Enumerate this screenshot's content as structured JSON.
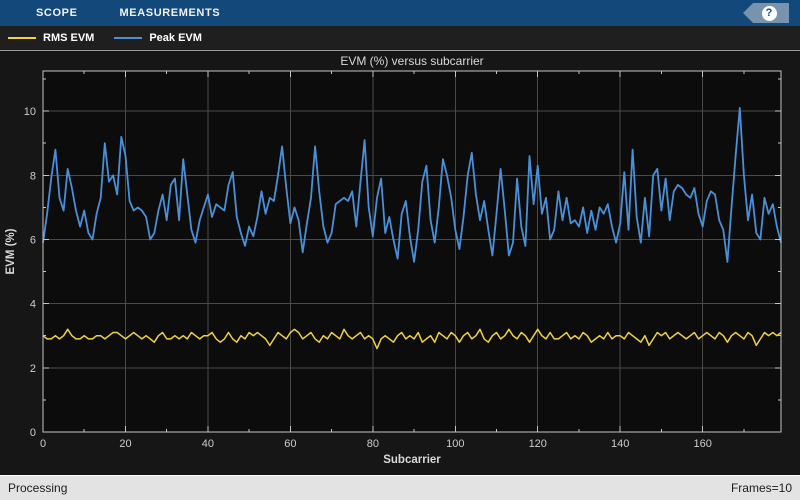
{
  "toolbar": {
    "tabs": [
      {
        "label": "SCOPE"
      },
      {
        "label": "MEASUREMENTS"
      }
    ],
    "help_label": "?",
    "bg_color": "#12497a"
  },
  "legend": {
    "items": [
      {
        "label": "RMS EVM",
        "color": "#eed23f"
      },
      {
        "label": "Peak EVM",
        "color": "#4a90d9"
      }
    ]
  },
  "statusbar": {
    "left": "Processing",
    "right": "Frames=10"
  },
  "chart_data": {
    "type": "line",
    "title": "EVM (%) versus subcarrier",
    "xlabel": "Subcarrier",
    "ylabel": "EVM (%)",
    "xlim": [
      0,
      179
    ],
    "ylim": [
      0,
      11.25
    ],
    "xticks_major": [
      0,
      20,
      40,
      60,
      80,
      100,
      120,
      140,
      160
    ],
    "xticks_minor": [
      10,
      30,
      50,
      70,
      90,
      110,
      130,
      150,
      170
    ],
    "yticks_major": [
      0,
      2,
      4,
      6,
      8,
      10
    ],
    "yticks_minor": [
      1,
      3,
      5,
      7,
      9,
      11
    ],
    "grid": true,
    "legend_position": "top-strip",
    "colors": {
      "plot_bg": "#0c0c0c",
      "figure_bg": "#161616",
      "grid": "#4a4a4a",
      "axis": "#c4c4c4",
      "tick_text": "#cccccc",
      "title_text": "#d9d9d9"
    },
    "x_step": 1,
    "series": [
      {
        "name": "RMS EVM",
        "color": "#eed23f",
        "width": 1.5,
        "values": [
          3.0,
          2.9,
          2.9,
          3.0,
          2.9,
          3.0,
          3.2,
          3.0,
          2.9,
          2.9,
          3.0,
          2.9,
          2.9,
          3.0,
          3.0,
          2.9,
          3.0,
          3.1,
          3.1,
          3.0,
          2.9,
          3.0,
          3.1,
          3.0,
          2.9,
          3.0,
          2.9,
          2.8,
          3.0,
          3.1,
          2.9,
          2.9,
          3.0,
          2.9,
          3.0,
          2.9,
          3.1,
          3.0,
          2.9,
          3.0,
          3.0,
          3.1,
          2.9,
          2.8,
          2.9,
          3.1,
          2.9,
          2.8,
          3.0,
          2.9,
          3.1,
          3.0,
          3.1,
          3.0,
          2.9,
          2.7,
          2.9,
          3.1,
          3.0,
          2.9,
          3.1,
          3.2,
          3.1,
          2.9,
          3.0,
          3.1,
          2.9,
          2.8,
          3.0,
          2.9,
          3.1,
          3.0,
          2.9,
          3.2,
          3.0,
          2.9,
          3.0,
          3.1,
          2.9,
          3.0,
          2.9,
          2.6,
          2.9,
          3.0,
          2.9,
          2.8,
          3.0,
          3.1,
          2.9,
          3.0,
          2.9,
          3.1,
          2.8,
          2.9,
          3.0,
          2.8,
          3.1,
          3.0,
          2.9,
          3.1,
          3.0,
          2.8,
          3.0,
          3.1,
          2.9,
          3.0,
          3.2,
          2.9,
          2.8,
          3.0,
          3.1,
          2.9,
          3.0,
          3.2,
          3.0,
          2.9,
          3.1,
          3.0,
          2.8,
          3.0,
          3.2,
          3.0,
          2.9,
          3.1,
          2.9,
          2.9,
          3.0,
          3.1,
          2.9,
          3.0,
          2.9,
          3.1,
          3.0,
          2.8,
          2.9,
          3.0,
          2.9,
          3.1,
          2.9,
          3.0,
          3.0,
          2.9,
          3.1,
          3.0,
          2.9,
          2.8,
          3.0,
          2.7,
          2.9,
          3.1,
          3.0,
          3.1,
          2.9,
          3.0,
          3.1,
          3.0,
          2.9,
          3.0,
          3.1,
          2.9,
          3.0,
          3.1,
          3.0,
          2.9,
          3.1,
          3.0,
          2.8,
          3.0,
          3.1,
          3.0,
          2.9,
          3.1,
          3.0,
          2.7,
          2.9,
          3.1,
          3.0,
          3.1,
          3.0,
          3.1
        ]
      },
      {
        "name": "Peak EVM",
        "color": "#4a90d9",
        "width": 1.8,
        "values": [
          5.9,
          6.8,
          7.9,
          8.8,
          7.3,
          6.9,
          8.2,
          7.6,
          6.9,
          6.4,
          6.9,
          6.2,
          6.0,
          6.8,
          7.3,
          9.0,
          7.8,
          8.0,
          7.4,
          9.2,
          8.6,
          7.2,
          6.9,
          7.0,
          6.9,
          6.7,
          6.0,
          6.2,
          6.9,
          7.4,
          6.6,
          7.7,
          7.9,
          6.6,
          8.5,
          7.4,
          6.3,
          5.9,
          6.6,
          7.0,
          7.4,
          6.7,
          7.1,
          7.0,
          6.9,
          7.7,
          8.1,
          6.7,
          6.2,
          5.8,
          6.4,
          6.1,
          6.7,
          7.5,
          6.8,
          7.3,
          7.2,
          8.0,
          8.9,
          7.6,
          6.5,
          7.0,
          6.6,
          5.6,
          6.5,
          7.3,
          8.9,
          7.5,
          6.4,
          5.9,
          6.2,
          7.1,
          7.2,
          7.3,
          7.2,
          7.5,
          6.4,
          7.8,
          9.1,
          7.0,
          6.1,
          7.3,
          7.9,
          6.2,
          6.7,
          6.0,
          5.4,
          6.8,
          7.2,
          6.1,
          5.3,
          6.3,
          7.8,
          8.3,
          6.6,
          5.9,
          7.0,
          8.5,
          8.0,
          7.3,
          6.3,
          5.7,
          6.7,
          8.0,
          8.7,
          7.4,
          6.6,
          7.2,
          6.3,
          5.5,
          6.8,
          8.2,
          6.9,
          5.5,
          5.9,
          7.9,
          6.4,
          5.8,
          8.6,
          7.1,
          8.3,
          6.8,
          7.3,
          6.0,
          6.3,
          7.5,
          6.6,
          7.3,
          6.5,
          6.6,
          6.4,
          7.0,
          6.2,
          6.9,
          6.3,
          7.0,
          6.8,
          7.1,
          6.4,
          5.9,
          6.5,
          8.1,
          6.3,
          8.8,
          6.7,
          5.9,
          7.3,
          6.1,
          8.0,
          8.2,
          6.9,
          7.9,
          6.6,
          7.5,
          7.7,
          7.6,
          7.4,
          7.3,
          7.6,
          6.8,
          6.4,
          7.2,
          7.5,
          7.4,
          6.6,
          6.3,
          5.3,
          7.0,
          8.6,
          10.1,
          8.0,
          6.6,
          7.4,
          6.2,
          6.0,
          7.3,
          6.8,
          7.1,
          6.4,
          5.9
        ]
      }
    ]
  }
}
